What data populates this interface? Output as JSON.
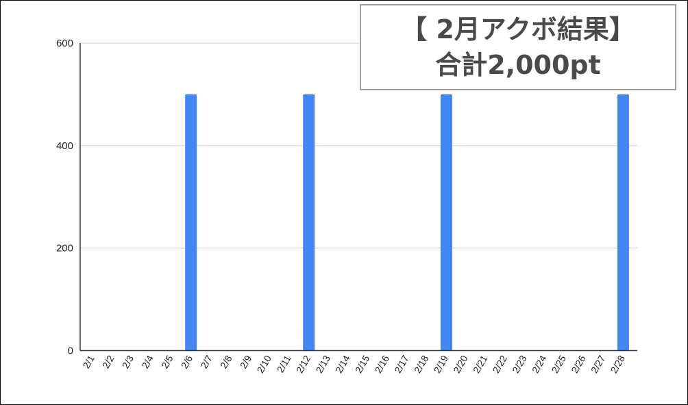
{
  "chart_data": {
    "type": "bar",
    "categories": [
      "2/1",
      "2/2",
      "2/3",
      "2/4",
      "2/5",
      "2/6",
      "2/7",
      "2/8",
      "2/9",
      "2/10",
      "2/11",
      "2/12",
      "2/13",
      "2/14",
      "2/15",
      "2/16",
      "2/17",
      "2/18",
      "2/19",
      "2/20",
      "2/21",
      "2/22",
      "2/23",
      "2/24",
      "2/25",
      "2/26",
      "2/27",
      "2/28"
    ],
    "values": [
      0,
      0,
      0,
      0,
      0,
      500,
      0,
      0,
      0,
      0,
      0,
      500,
      0,
      0,
      0,
      0,
      0,
      0,
      500,
      0,
      0,
      0,
      0,
      0,
      0,
      0,
      0,
      500
    ],
    "ylim": [
      0,
      600
    ],
    "yticks": [
      0,
      200,
      400,
      600
    ],
    "grid": true,
    "bar_color": "#4285f4",
    "annotation": [
      "【 2月アクボ結果】",
      "合計2,000pt"
    ]
  }
}
